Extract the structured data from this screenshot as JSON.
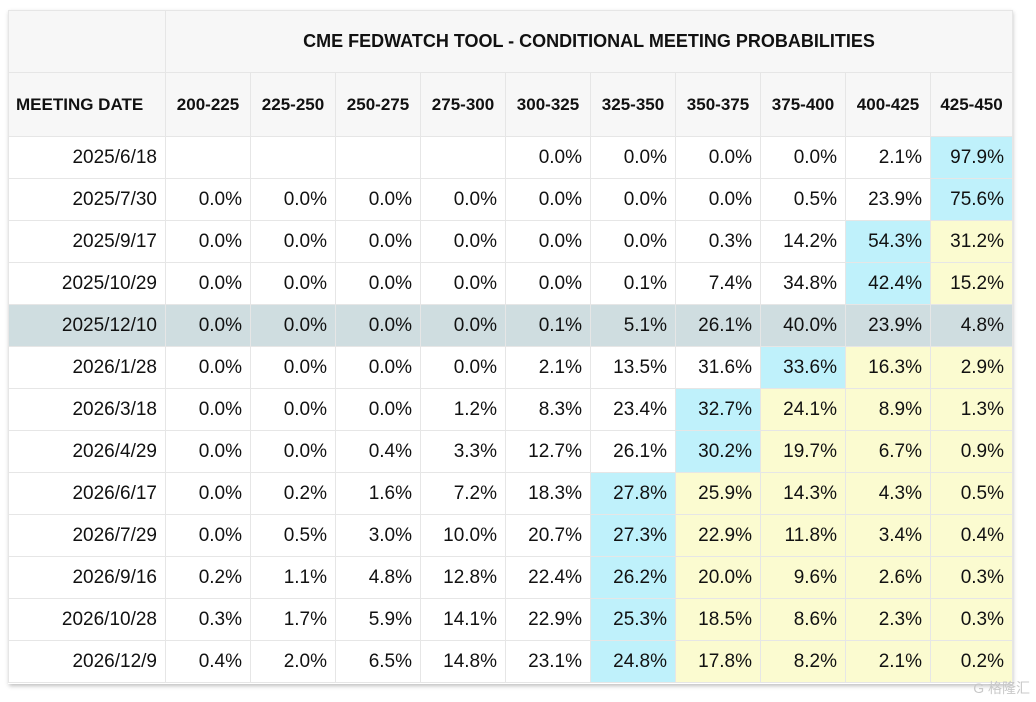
{
  "table": {
    "title": "CME FEDWATCH TOOL - CONDITIONAL MEETING PROBABILITIES",
    "date_header": "MEETING DATE",
    "columns": [
      "200-225",
      "225-250",
      "250-275",
      "275-300",
      "300-325",
      "325-350",
      "350-375",
      "375-400",
      "400-425",
      "425-450"
    ],
    "rows": [
      {
        "date": "2025/6/18",
        "values": [
          "",
          "",
          "",
          "",
          "0.0%",
          "0.0%",
          "0.0%",
          "0.0%",
          "2.1%",
          "97.9%"
        ],
        "styles": [
          "",
          "",
          "",
          "",
          "",
          "",
          "",
          "",
          "",
          "c"
        ]
      },
      {
        "date": "2025/7/30",
        "values": [
          "0.0%",
          "0.0%",
          "0.0%",
          "0.0%",
          "0.0%",
          "0.0%",
          "0.0%",
          "0.5%",
          "23.9%",
          "75.6%"
        ],
        "styles": [
          "",
          "",
          "",
          "",
          "",
          "",
          "",
          "",
          "",
          "c"
        ]
      },
      {
        "date": "2025/9/17",
        "values": [
          "0.0%",
          "0.0%",
          "0.0%",
          "0.0%",
          "0.0%",
          "0.0%",
          "0.3%",
          "14.2%",
          "54.3%",
          "31.2%"
        ],
        "styles": [
          "",
          "",
          "",
          "",
          "",
          "",
          "",
          "",
          "c",
          "y"
        ]
      },
      {
        "date": "2025/10/29",
        "values": [
          "0.0%",
          "0.0%",
          "0.0%",
          "0.0%",
          "0.0%",
          "0.1%",
          "7.4%",
          "34.8%",
          "42.4%",
          "15.2%"
        ],
        "styles": [
          "",
          "",
          "",
          "",
          "",
          "",
          "",
          "",
          "c",
          "y"
        ]
      },
      {
        "date": "2025/12/10",
        "values": [
          "0.0%",
          "0.0%",
          "0.0%",
          "0.0%",
          "0.1%",
          "5.1%",
          "26.1%",
          "40.0%",
          "23.9%",
          "4.8%"
        ],
        "styles": [
          "",
          "",
          "",
          "",
          "",
          "",
          "",
          "",
          "",
          ""
        ],
        "highlight": true
      },
      {
        "date": "2026/1/28",
        "values": [
          "0.0%",
          "0.0%",
          "0.0%",
          "0.0%",
          "2.1%",
          "13.5%",
          "31.6%",
          "33.6%",
          "16.3%",
          "2.9%"
        ],
        "styles": [
          "",
          "",
          "",
          "",
          "",
          "",
          "",
          "c",
          "y",
          "y"
        ]
      },
      {
        "date": "2026/3/18",
        "values": [
          "0.0%",
          "0.0%",
          "0.0%",
          "1.2%",
          "8.3%",
          "23.4%",
          "32.7%",
          "24.1%",
          "8.9%",
          "1.3%"
        ],
        "styles": [
          "",
          "",
          "",
          "",
          "",
          "",
          "c",
          "y",
          "y",
          "y"
        ]
      },
      {
        "date": "2026/4/29",
        "values": [
          "0.0%",
          "0.0%",
          "0.4%",
          "3.3%",
          "12.7%",
          "26.1%",
          "30.2%",
          "19.7%",
          "6.7%",
          "0.9%"
        ],
        "styles": [
          "",
          "",
          "",
          "",
          "",
          "",
          "c",
          "y",
          "y",
          "y"
        ]
      },
      {
        "date": "2026/6/17",
        "values": [
          "0.0%",
          "0.2%",
          "1.6%",
          "7.2%",
          "18.3%",
          "27.8%",
          "25.9%",
          "14.3%",
          "4.3%",
          "0.5%"
        ],
        "styles": [
          "",
          "",
          "",
          "",
          "",
          "c",
          "y",
          "y",
          "y",
          "y"
        ]
      },
      {
        "date": "2026/7/29",
        "values": [
          "0.0%",
          "0.5%",
          "3.0%",
          "10.0%",
          "20.7%",
          "27.3%",
          "22.9%",
          "11.8%",
          "3.4%",
          "0.4%"
        ],
        "styles": [
          "",
          "",
          "",
          "",
          "",
          "c",
          "y",
          "y",
          "y",
          "y"
        ]
      },
      {
        "date": "2026/9/16",
        "values": [
          "0.2%",
          "1.1%",
          "4.8%",
          "12.8%",
          "22.4%",
          "26.2%",
          "20.0%",
          "9.6%",
          "2.6%",
          "0.3%"
        ],
        "styles": [
          "",
          "",
          "",
          "",
          "",
          "c",
          "y",
          "y",
          "y",
          "y"
        ]
      },
      {
        "date": "2026/10/28",
        "values": [
          "0.3%",
          "1.7%",
          "5.9%",
          "14.1%",
          "22.9%",
          "25.3%",
          "18.5%",
          "8.6%",
          "2.3%",
          "0.3%"
        ],
        "styles": [
          "",
          "",
          "",
          "",
          "",
          "c",
          "y",
          "y",
          "y",
          "y"
        ]
      },
      {
        "date": "2026/12/9",
        "values": [
          "0.4%",
          "2.0%",
          "6.5%",
          "14.8%",
          "23.1%",
          "24.8%",
          "17.8%",
          "8.2%",
          "2.1%",
          "0.2%"
        ],
        "styles": [
          "",
          "",
          "",
          "",
          "",
          "c",
          "y",
          "y",
          "y",
          "y"
        ]
      }
    ]
  },
  "colors": {
    "cyan": "#bff1fb",
    "yellow": "#fbfbd0",
    "highlight_row": "#cfdde0",
    "header_bg": "#f7f7f7"
  },
  "watermark": "G 格隆汇"
}
